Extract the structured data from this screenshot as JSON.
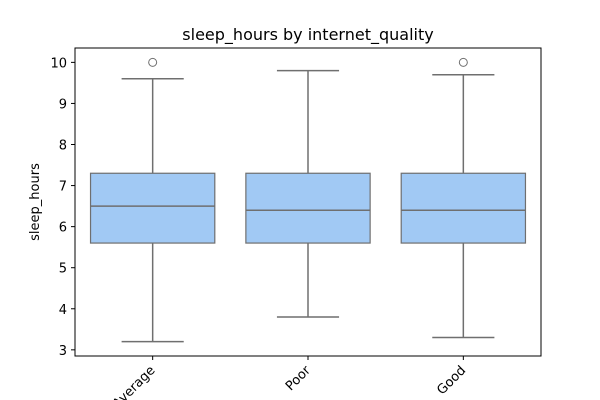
{
  "chart_data": {
    "type": "box",
    "title": "sleep_hours by internet_quality",
    "xlabel": "",
    "ylabel": "sleep_hours",
    "ylim": [
      2.85,
      10.35
    ],
    "yticks": [
      3,
      4,
      5,
      6,
      7,
      8,
      9,
      10
    ],
    "ytick_labels": [
      "3",
      "4",
      "5",
      "6",
      "7",
      "8",
      "9",
      "10"
    ],
    "grid": false,
    "categories": [
      "Average",
      "Poor",
      "Good"
    ],
    "boxes": [
      {
        "category": "Average",
        "whisker_low": 3.2,
        "q1": 5.6,
        "median": 6.5,
        "q3": 7.3,
        "whisker_high": 9.6,
        "outliers": [
          10.0
        ]
      },
      {
        "category": "Poor",
        "whisker_low": 3.8,
        "q1": 5.6,
        "median": 6.4,
        "q3": 7.3,
        "whisker_high": 9.8,
        "outliers": []
      },
      {
        "category": "Good",
        "whisker_low": 3.3,
        "q1": 5.6,
        "median": 6.4,
        "q3": 7.3,
        "whisker_high": 9.7,
        "outliers": [
          10.0
        ]
      }
    ],
    "colors": {
      "box_fill": "#a1c9f4",
      "line": "#6f6f6f",
      "axis": "#000000"
    }
  }
}
